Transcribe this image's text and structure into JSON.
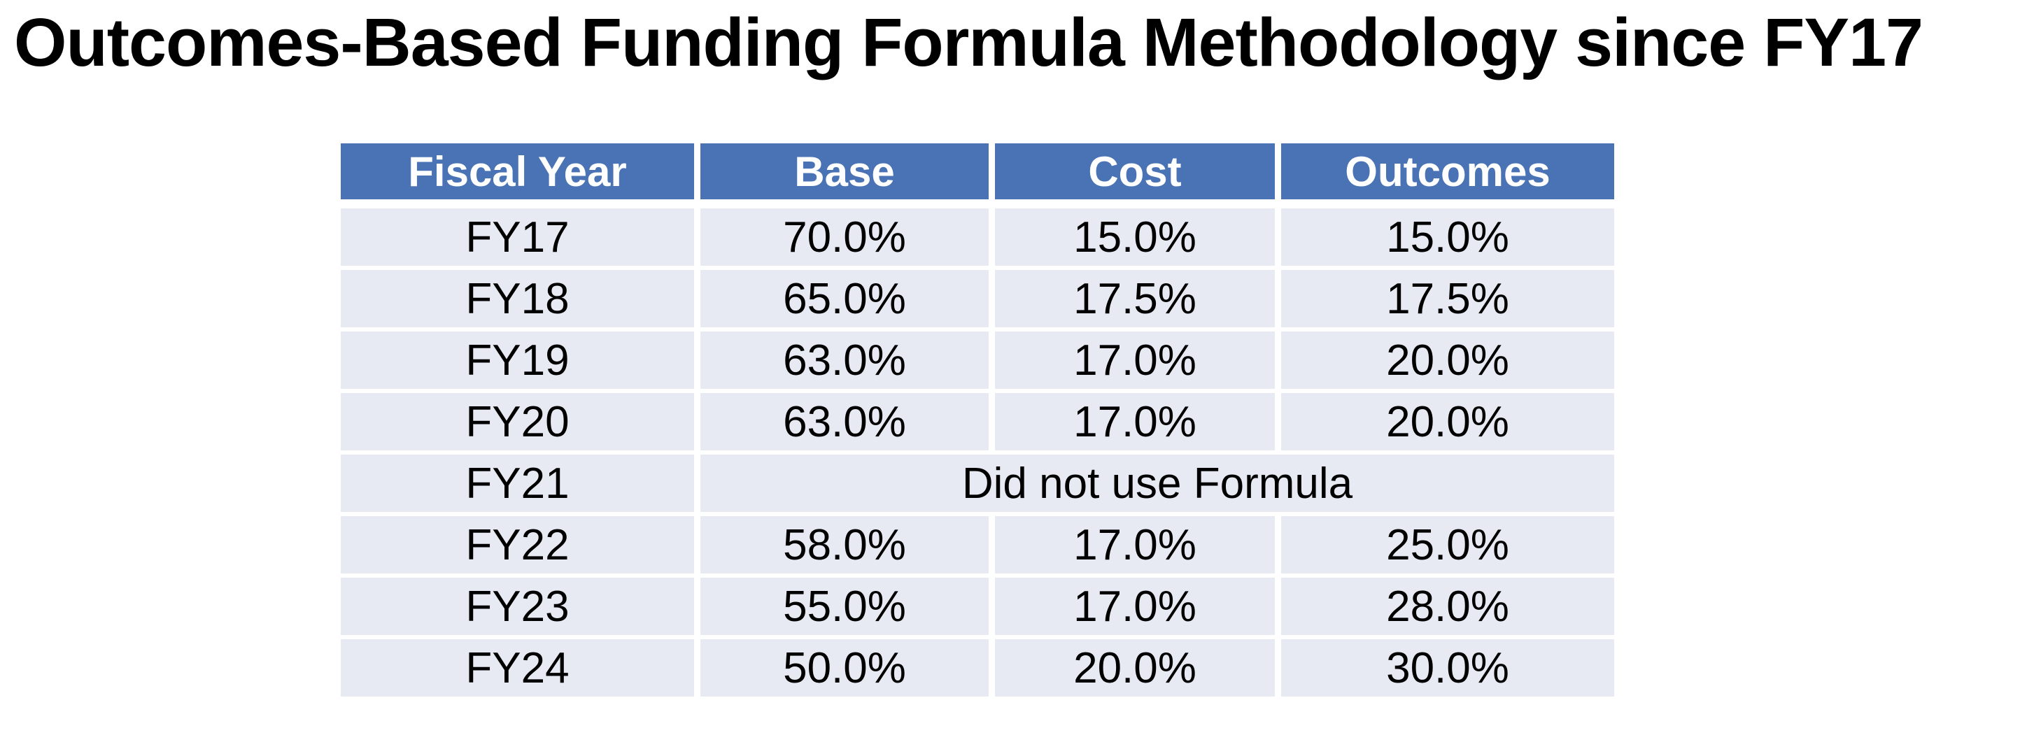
{
  "title": "Outcomes-Based Funding Formula Methodology since FY17",
  "table": {
    "columns": [
      "Fiscal Year",
      "Base",
      "Cost",
      "Outcomes"
    ],
    "rows": [
      {
        "year": "FY17",
        "values": [
          "70.0%",
          "15.0%",
          "15.0%"
        ]
      },
      {
        "year": "FY18",
        "values": [
          "65.0%",
          "17.5%",
          "17.5%"
        ]
      },
      {
        "year": "FY19",
        "values": [
          "63.0%",
          "17.0%",
          "20.0%"
        ]
      },
      {
        "year": "FY20",
        "values": [
          "63.0%",
          "17.0%",
          "20.0%"
        ]
      },
      {
        "year": "FY21",
        "merged_note": "Did not use Formula"
      },
      {
        "year": "FY22",
        "values": [
          "58.0%",
          "17.0%",
          "25.0%"
        ]
      },
      {
        "year": "FY23",
        "values": [
          "55.0%",
          "17.0%",
          "28.0%"
        ]
      },
      {
        "year": "FY24",
        "values": [
          "50.0%",
          "20.0%",
          "30.0%"
        ]
      }
    ]
  },
  "chart_data": {
    "type": "table",
    "title": "Outcomes-Based Funding Formula Methodology since FY17",
    "columns": [
      "Fiscal Year",
      "Base",
      "Cost",
      "Outcomes"
    ],
    "rows": [
      [
        "FY17",
        "70.0%",
        "15.0%",
        "15.0%"
      ],
      [
        "FY18",
        "65.0%",
        "17.5%",
        "17.5%"
      ],
      [
        "FY19",
        "63.0%",
        "17.0%",
        "20.0%"
      ],
      [
        "FY20",
        "63.0%",
        "17.0%",
        "20.0%"
      ],
      [
        "FY21",
        "Did not use Formula",
        "Did not use Formula",
        "Did not use Formula"
      ],
      [
        "FY22",
        "58.0%",
        "17.0%",
        "25.0%"
      ],
      [
        "FY23",
        "55.0%",
        "17.0%",
        "28.0%"
      ],
      [
        "FY24",
        "50.0%",
        "20.0%",
        "30.0%"
      ]
    ],
    "notes": "FY21 Base/Cost/Outcomes cells are merged into a single cell reading 'Did not use Formula'"
  },
  "colors": {
    "header_bg": "#4A73B5",
    "header_text": "#FFFFFF",
    "row_bg": "#E8EAF3",
    "body_text": "#000000",
    "background": "#FFFFFF"
  }
}
